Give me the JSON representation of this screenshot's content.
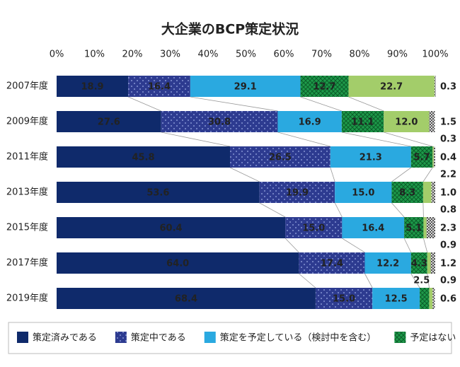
{
  "chart_data": {
    "type": "stacked-barh",
    "title": "大企業のBCP策定状況",
    "categories": [
      "2007年度",
      "2009年度",
      "2011年度",
      "2013年度",
      "2015年度",
      "2017年度",
      "2019年度"
    ],
    "xlim": [
      0,
      100
    ],
    "xticks": [
      {
        "value": 0,
        "label": "0%"
      },
      {
        "value": 10,
        "label": "10%"
      },
      {
        "value": 20,
        "label": "20%"
      },
      {
        "value": 30,
        "label": "30%"
      },
      {
        "value": 40,
        "label": "40%"
      },
      {
        "value": 50,
        "label": "50%"
      },
      {
        "value": 60,
        "label": "60%"
      },
      {
        "value": 70,
        "label": "70%"
      },
      {
        "value": 80,
        "label": "80%"
      },
      {
        "value": 90,
        "label": "90%"
      },
      {
        "value": 100,
        "label": "100%"
      }
    ],
    "series": [
      {
        "name": "策定済みである",
        "color": "#0f2a6b",
        "pattern": "solid",
        "values": [
          18.9,
          27.6,
          45.8,
          53.6,
          60.4,
          64.0,
          68.4
        ],
        "value_labels": [
          "18.9",
          "27.6",
          "45.8",
          "53.6",
          "60.4",
          "64.0",
          "68.4"
        ]
      },
      {
        "name": "策定中である",
        "color": "#2d3b90",
        "pattern": "dots",
        "values": [
          16.4,
          30.8,
          26.5,
          19.9,
          15.0,
          17.4,
          15.0
        ],
        "value_labels": [
          "16.4",
          "30.8",
          "26.5",
          "19.9",
          "15.0",
          "17.4",
          "15.0"
        ]
      },
      {
        "name": "策定を予定している（検討中を含む）",
        "color": "#2aa9e0",
        "pattern": "solid",
        "values": [
          29.1,
          16.9,
          21.3,
          15.0,
          16.4,
          12.2,
          12.5
        ],
        "value_labels": [
          "29.1",
          "16.9",
          "21.3",
          "15.0",
          "16.4",
          "12.2",
          "12.5"
        ]
      },
      {
        "name": "予定はない",
        "color": "#1e9a4a",
        "pattern": "checker",
        "values": [
          12.7,
          11.1,
          5.7,
          8.3,
          5.1,
          4.3,
          2.5
        ],
        "value_labels": [
          "12.7",
          "11.1",
          "5.7",
          "8.3",
          "5.1",
          "4.3",
          "2.5"
        ]
      },
      {
        "color": "#a3cd6a",
        "pattern": "solid",
        "values": [
          22.7,
          12.0,
          0.3,
          2.2,
          0.8,
          0.9,
          0.9
        ],
        "value_labels": [
          "22.7",
          "12.0",
          "0.3",
          "2.2",
          "0.8",
          "0.9",
          "0.9"
        ]
      },
      {
        "color": "#333333",
        "pattern": "crosshatch",
        "values": [
          0.3,
          1.5,
          0.4,
          1.0,
          2.3,
          1.2,
          0.6
        ],
        "value_labels": [
          "0.3",
          "1.5",
          "0.4",
          "1.0",
          "2.3",
          "1.2",
          "0.6"
        ]
      }
    ]
  }
}
